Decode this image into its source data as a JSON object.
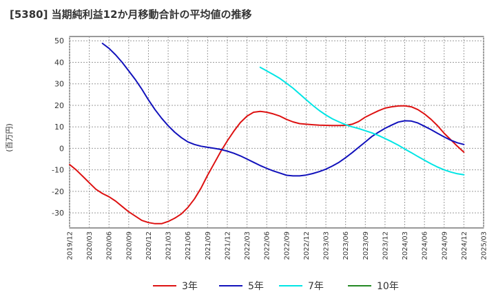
{
  "chart_data": {
    "type": "line",
    "title": "[5380]  当期純利益12か月移動合計の平均値の推移",
    "ylabel": "(百万円)",
    "xlabel": "",
    "ylim": [
      -37,
      52
    ],
    "yticks": [
      50,
      40,
      30,
      20,
      10,
      0,
      -10,
      -20,
      -30
    ],
    "xticks": [
      "2019/12",
      "2020/03",
      "2020/06",
      "2020/09",
      "2020/12",
      "2021/03",
      "2021/06",
      "2021/09",
      "2021/12",
      "2022/03",
      "2022/06",
      "2022/09",
      "2022/12",
      "2023/03",
      "2023/06",
      "2023/09",
      "2023/12",
      "2024/03",
      "2024/06",
      "2024/09",
      "2024/12",
      "2025/03"
    ],
    "grid": true,
    "legend_position": "bottom",
    "series": [
      {
        "name": "3年",
        "color": "#dd1111",
        "x": [
          "2019/12",
          "2020/01",
          "2020/02",
          "2020/03",
          "2020/04",
          "2020/05",
          "2020/06",
          "2020/07",
          "2020/08",
          "2020/09",
          "2020/10",
          "2020/11",
          "2020/12",
          "2021/01",
          "2021/02",
          "2021/03",
          "2021/04",
          "2021/05",
          "2021/06",
          "2021/07",
          "2021/08",
          "2021/09",
          "2021/10",
          "2021/11",
          "2021/12",
          "2022/01",
          "2022/02",
          "2022/03",
          "2022/04",
          "2022/05",
          "2022/06",
          "2022/07",
          "2022/08",
          "2022/09",
          "2022/10",
          "2022/11",
          "2022/12",
          "2023/01",
          "2023/02",
          "2023/03",
          "2023/04",
          "2023/05",
          "2023/06",
          "2023/07",
          "2023/08",
          "2023/09",
          "2023/10",
          "2023/11",
          "2023/12",
          "2024/01",
          "2024/02",
          "2024/03",
          "2024/04",
          "2024/05",
          "2024/06",
          "2024/07",
          "2024/08",
          "2024/09",
          "2024/10",
          "2024/11",
          "2024/12"
        ],
        "values": [
          -7.5,
          -10,
          -13,
          -16,
          -19,
          -21,
          -22.5,
          -24.5,
          -27,
          -29.5,
          -31.5,
          -33.5,
          -34.5,
          -35,
          -35,
          -34,
          -32.5,
          -30.5,
          -27.5,
          -23.5,
          -18.5,
          -12.5,
          -7,
          -1.5,
          3.5,
          8,
          12,
          15,
          16.8,
          17.2,
          16.8,
          16,
          15,
          13.5,
          12.3,
          11.5,
          11.2,
          11,
          10.8,
          10.7,
          10.6,
          10.6,
          10.7,
          11.2,
          12.5,
          14.5,
          16,
          17.5,
          18.7,
          19.3,
          19.7,
          19.8,
          19.3,
          18,
          16,
          13.5,
          10.5,
          7,
          4,
          1,
          -1.8
        ]
      },
      {
        "name": "5年",
        "color": "#1111bb",
        "x": [
          "2020/05",
          "2020/06",
          "2020/07",
          "2020/08",
          "2020/09",
          "2020/10",
          "2020/11",
          "2020/12",
          "2021/01",
          "2021/02",
          "2021/03",
          "2021/04",
          "2021/05",
          "2021/06",
          "2021/07",
          "2021/08",
          "2021/09",
          "2021/10",
          "2021/11",
          "2021/12",
          "2022/01",
          "2022/02",
          "2022/03",
          "2022/04",
          "2022/05",
          "2022/06",
          "2022/07",
          "2022/08",
          "2022/09",
          "2022/10",
          "2022/11",
          "2022/12",
          "2023/01",
          "2023/02",
          "2023/03",
          "2023/04",
          "2023/05",
          "2023/06",
          "2023/07",
          "2023/08",
          "2023/09",
          "2023/10",
          "2023/11",
          "2023/12",
          "2024/01",
          "2024/02",
          "2024/03",
          "2024/04",
          "2024/05",
          "2024/06",
          "2024/07",
          "2024/08",
          "2024/09",
          "2024/10",
          "2024/11",
          "2024/12"
        ],
        "values": [
          48.8,
          46.5,
          43.5,
          40,
          36,
          32,
          27.5,
          22.5,
          18,
          14,
          10.5,
          7.5,
          5,
          3,
          1.8,
          1,
          0.5,
          0,
          -0.5,
          -1.3,
          -2.3,
          -3.5,
          -5,
          -6.5,
          -8,
          -9.3,
          -10.5,
          -11.5,
          -12.5,
          -12.8,
          -12.8,
          -12.4,
          -11.7,
          -10.8,
          -9.7,
          -8.2,
          -6.5,
          -4.3,
          -2,
          0.5,
          3,
          5.5,
          7.5,
          9.3,
          10.8,
          12.2,
          12.8,
          12.7,
          11.8,
          10.3,
          8.7,
          7,
          5.3,
          3.8,
          2.6,
          1.8
        ]
      },
      {
        "name": "7年",
        "color": "#00e5e5",
        "x": [
          "2022/05",
          "2022/06",
          "2022/07",
          "2022/08",
          "2022/09",
          "2022/10",
          "2022/11",
          "2022/12",
          "2023/01",
          "2023/02",
          "2023/03",
          "2023/04",
          "2023/05",
          "2023/06",
          "2023/07",
          "2023/08",
          "2023/09",
          "2023/10",
          "2023/11",
          "2023/12",
          "2024/01",
          "2024/02",
          "2024/03",
          "2024/04",
          "2024/05",
          "2024/06",
          "2024/07",
          "2024/08",
          "2024/09",
          "2024/10",
          "2024/11",
          "2024/12"
        ],
        "values": [
          37.7,
          36,
          34.3,
          32.5,
          30.3,
          28,
          25.3,
          22.6,
          20,
          17.6,
          15.5,
          13.7,
          12.3,
          11,
          10,
          9.2,
          8.2,
          7.2,
          6,
          4.6,
          3.1,
          1.5,
          -0.3,
          -2,
          -3.8,
          -5.5,
          -7.2,
          -8.7,
          -10,
          -11,
          -11.8,
          -12.3
        ]
      },
      {
        "name": "10年",
        "color": "#228822",
        "x": [],
        "values": []
      }
    ]
  }
}
